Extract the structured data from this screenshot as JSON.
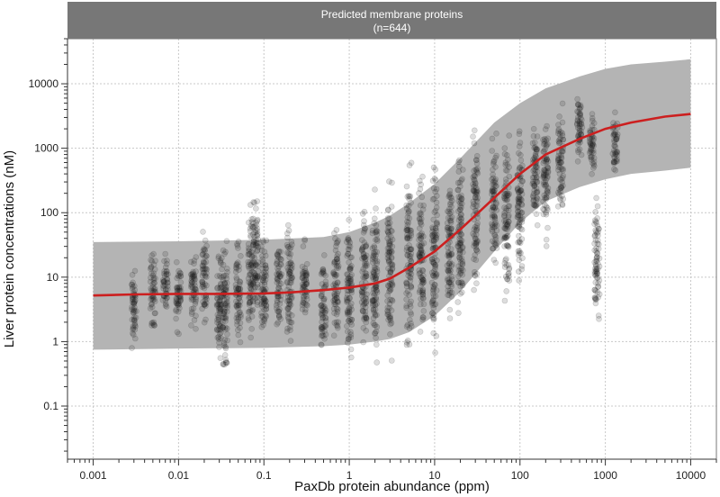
{
  "chart_data": {
    "type": "scatter",
    "strip": {
      "title": "Predicted membrane proteins",
      "subtitle": "(n=644)"
    },
    "xlabel": "PaxDb protein abundance (ppm)",
    "ylabel": "Liver protein concentrations (nM)",
    "x_scale": "log",
    "y_scale": "log",
    "xlim": [
      0.0005,
      20000
    ],
    "ylim": [
      0.015,
      50000
    ],
    "x_ticks": [
      {
        "value": 0.001,
        "label": "0.001"
      },
      {
        "value": 0.01,
        "label": "0.01"
      },
      {
        "value": 0.1,
        "label": "0.1"
      },
      {
        "value": 1,
        "label": "1"
      },
      {
        "value": 10,
        "label": "10"
      },
      {
        "value": 100,
        "label": "100"
      },
      {
        "value": 1000,
        "label": "1000"
      },
      {
        "value": 10000,
        "label": "10000"
      }
    ],
    "y_ticks": [
      {
        "value": 0.1,
        "label": "0.1"
      },
      {
        "value": 1,
        "label": "1"
      },
      {
        "value": 10,
        "label": "10"
      },
      {
        "value": 100,
        "label": "100"
      },
      {
        "value": 1000,
        "label": "1000"
      },
      {
        "value": 10000,
        "label": "10000"
      }
    ],
    "grid": true,
    "trend_line": {
      "color": "#cc1f1f",
      "x": [
        0.001,
        0.003,
        0.01,
        0.03,
        0.1,
        0.2,
        0.5,
        1,
        2,
        3,
        5,
        10,
        20,
        50,
        100,
        200,
        500,
        1000,
        2000,
        5000,
        10000
      ],
      "y": [
        5.2,
        5.4,
        5.5,
        5.5,
        5.6,
        5.8,
        6.3,
        6.9,
        8.0,
        9.5,
        14,
        25,
        55,
        170,
        400,
        800,
        1400,
        2000,
        2500,
        3100,
        3400
      ]
    },
    "band": {
      "color": "#b4b4b4",
      "x": [
        0.001,
        0.01,
        0.1,
        0.5,
        1,
        2,
        3,
        5,
        10,
        20,
        50,
        100,
        200,
        500,
        1000,
        2000,
        5000,
        10000
      ],
      "lower": [
        0.75,
        0.78,
        0.8,
        0.85,
        0.9,
        1.0,
        1.1,
        1.4,
        2.5,
        6,
        25,
        70,
        150,
        250,
        330,
        400,
        450,
        500
      ],
      "upper": [
        35,
        36,
        38,
        42,
        50,
        70,
        90,
        140,
        280,
        700,
        2500,
        5000,
        8500,
        13000,
        17000,
        20000,
        22000,
        24000
      ]
    },
    "points": {
      "color": "#1a1a1a",
      "opacity": 0.15,
      "columns": [
        [
          0.003,
          0.5,
          20
        ],
        [
          0.005,
          1,
          40
        ],
        [
          0.007,
          2,
          30
        ],
        [
          0.01,
          1,
          30
        ],
        [
          0.015,
          1,
          40
        ],
        [
          0.02,
          1.5,
          80
        ],
        [
          0.03,
          0.3,
          50
        ],
        [
          0.035,
          0.2,
          70
        ],
        [
          0.05,
          0.5,
          60
        ],
        [
          0.07,
          0.5,
          200
        ],
        [
          0.08,
          1,
          300
        ],
        [
          0.1,
          0.4,
          90
        ],
        [
          0.15,
          0.8,
          70
        ],
        [
          0.2,
          0.4,
          150
        ],
        [
          0.3,
          1,
          50
        ],
        [
          0.5,
          0.4,
          40
        ],
        [
          0.7,
          0.6,
          100
        ],
        [
          1,
          0.2,
          300
        ],
        [
          1.5,
          0.3,
          250
        ],
        [
          2,
          0.2,
          500
        ],
        [
          3,
          0.3,
          800
        ],
        [
          5,
          0.3,
          1300
        ],
        [
          7,
          0.5,
          800
        ],
        [
          10,
          0.4,
          1500
        ],
        [
          15,
          1,
          1200
        ],
        [
          20,
          0.9,
          2000
        ],
        [
          30,
          3,
          3000
        ],
        [
          50,
          5,
          3000
        ],
        [
          70,
          2,
          3500
        ],
        [
          100,
          3,
          5000
        ],
        [
          150,
          30,
          5000
        ],
        [
          200,
          20,
          7000
        ],
        [
          300,
          50,
          8000
        ],
        [
          500,
          300,
          11000
        ],
        [
          700,
          300,
          6000
        ],
        [
          800,
          0.9,
          300
        ],
        [
          1300,
          250,
          4500
        ]
      ]
    }
  }
}
